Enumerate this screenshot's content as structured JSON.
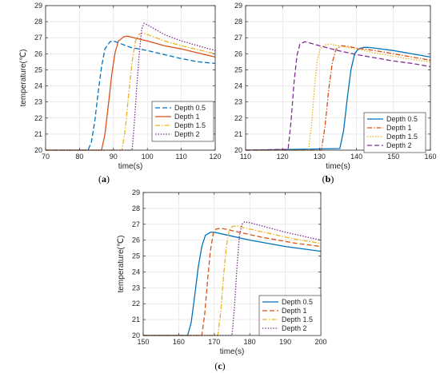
{
  "chart_data": [
    {
      "type": "line",
      "panel_label": "(a)",
      "xlabel": "time(s)",
      "ylabel": "temperature(℃)",
      "xlim": [
        70,
        120
      ],
      "ylim": [
        20,
        29
      ],
      "xticks": [
        70,
        80,
        90,
        100,
        110,
        120
      ],
      "yticks": [
        20,
        21,
        22,
        23,
        24,
        25,
        26,
        27,
        28,
        29
      ],
      "legend_position": "bottom-right",
      "series": [
        {
          "name": "Depth 0.5",
          "color": "#0072BD",
          "style": "dashed",
          "x": [
            70,
            82.5,
            83.5,
            84.5,
            85.5,
            86.5,
            87.5,
            89,
            90,
            95,
            100,
            105,
            110,
            115,
            120
          ],
          "y": [
            20,
            20,
            20.5,
            21.8,
            23.6,
            25.2,
            26.3,
            26.75,
            26.8,
            26.4,
            26.2,
            25.95,
            25.7,
            25.5,
            25.4
          ]
        },
        {
          "name": "Depth 1",
          "color": "#D95319",
          "style": "solid",
          "x": [
            70,
            86.5,
            87.5,
            88.5,
            89.5,
            90.5,
            91.5,
            93,
            94,
            100,
            105,
            110,
            115,
            120
          ],
          "y": [
            20,
            20,
            21,
            22.8,
            24.7,
            26.1,
            26.8,
            27.05,
            27.1,
            26.8,
            26.5,
            26.3,
            26.05,
            25.8
          ]
        },
        {
          "name": "Depth 1.5",
          "color": "#EDB120",
          "style": "dashdot",
          "x": [
            70,
            92.5,
            93.5,
            94.5,
            95.5,
            96.5,
            97.5,
            98.5,
            100,
            105,
            110,
            115,
            120
          ],
          "y": [
            20,
            20,
            21.3,
            23.5,
            25.5,
            26.8,
            27.2,
            27.3,
            27.2,
            26.8,
            26.5,
            26.25,
            26.0
          ]
        },
        {
          "name": "Depth 2",
          "color": "#7E2F8E",
          "style": "dotted",
          "x": [
            70,
            95.5,
            96.2,
            96.9,
            97.6,
            98.3,
            99,
            100,
            105,
            110,
            115,
            120
          ],
          "y": [
            20,
            20,
            21.8,
            24,
            26,
            27.5,
            27.9,
            27.8,
            27.2,
            26.8,
            26.5,
            26.2
          ]
        }
      ]
    },
    {
      "type": "line",
      "panel_label": "(b)",
      "xlabel": "time(s)",
      "ylabel": "",
      "xlim": [
        110,
        160
      ],
      "ylim": [
        20,
        29
      ],
      "xticks": [
        110,
        120,
        130,
        140,
        150,
        160
      ],
      "yticks": [
        20,
        21,
        22,
        23,
        24,
        25,
        26,
        27,
        28,
        29
      ],
      "legend_position": "bottom-right",
      "series": [
        {
          "name": "Depth 0.5",
          "color": "#0072BD",
          "style": "solid",
          "x": [
            110,
            135.5,
            136.5,
            137.5,
            138.5,
            139.5,
            140.5,
            142,
            143,
            145,
            150,
            155,
            160
          ],
          "y": [
            20,
            20.1,
            21.2,
            23.2,
            25.0,
            26.0,
            26.3,
            26.4,
            26.4,
            26.35,
            26.2,
            26.0,
            25.8
          ]
        },
        {
          "name": "Depth 1",
          "color": "#D95319",
          "style": "dashdot",
          "x": [
            110,
            130.5,
            131.5,
            132.5,
            133.5,
            134.5,
            136,
            138,
            140,
            145,
            150,
            155,
            160
          ],
          "y": [
            20,
            20,
            21.5,
            23.8,
            25.5,
            26.3,
            26.5,
            26.45,
            26.35,
            26.2,
            26.0,
            25.8,
            25.6
          ]
        },
        {
          "name": "Depth 1.5",
          "color": "#EDB120",
          "style": "dotted",
          "x": [
            110,
            127,
            127.8,
            128.6,
            129.4,
            130.2,
            131.5,
            133,
            135,
            140,
            145,
            150,
            155,
            160
          ],
          "y": [
            20,
            20,
            21.5,
            23.8,
            25.6,
            26.35,
            26.55,
            26.6,
            26.5,
            26.3,
            26.05,
            25.85,
            25.65,
            25.5
          ]
        },
        {
          "name": "Depth 2",
          "color": "#7E2F8E",
          "style": "dashed",
          "x": [
            110,
            121.5,
            122.3,
            123.1,
            123.9,
            124.7,
            126,
            127,
            130,
            135,
            140,
            145,
            150,
            155,
            160
          ],
          "y": [
            20,
            20.05,
            21.8,
            24.2,
            25.9,
            26.6,
            26.75,
            26.7,
            26.5,
            26.2,
            25.95,
            25.75,
            25.55,
            25.4,
            25.2
          ]
        }
      ]
    },
    {
      "type": "line",
      "panel_label": "(c)",
      "xlabel": "time(s)",
      "ylabel": "temperature(℃)",
      "xlim": [
        150,
        200
      ],
      "ylim": [
        20,
        29
      ],
      "xticks": [
        150,
        160,
        170,
        180,
        190,
        200
      ],
      "yticks": [
        20,
        21,
        22,
        23,
        24,
        25,
        26,
        27,
        28,
        29
      ],
      "legend_position": "bottom-right",
      "series": [
        {
          "name": "Depth 0.5",
          "color": "#0072BD",
          "style": "solid",
          "x": [
            150,
            162.5,
            163.5,
            164.5,
            165.5,
            166.5,
            167.5,
            169,
            170,
            175,
            180,
            185,
            190,
            195,
            200
          ],
          "y": [
            20,
            20,
            20.8,
            22.5,
            24.3,
            25.6,
            26.3,
            26.5,
            26.5,
            26.25,
            26.0,
            25.8,
            25.6,
            25.45,
            25.3
          ]
        },
        {
          "name": "Depth 1",
          "color": "#D95319",
          "style": "dashed",
          "x": [
            150,
            166.5,
            167.3,
            168.1,
            168.9,
            169.7,
            170.5,
            172,
            173,
            178,
            183,
            188,
            193,
            200
          ],
          "y": [
            20,
            20,
            21.3,
            23.4,
            25.3,
            26.4,
            26.7,
            26.75,
            26.7,
            26.45,
            26.2,
            26.0,
            25.8,
            25.6
          ]
        },
        {
          "name": "Depth 1.5",
          "color": "#EDB120",
          "style": "dashdot",
          "x": [
            150,
            171,
            171.8,
            172.6,
            173.4,
            174.2,
            175,
            176.5,
            178,
            183,
            188,
            193,
            200
          ],
          "y": [
            20,
            20,
            21.4,
            23.7,
            25.6,
            26.6,
            26.85,
            26.9,
            26.8,
            26.55,
            26.3,
            26.05,
            25.8
          ]
        },
        {
          "name": "Depth 2",
          "color": "#7E2F8E",
          "style": "dotted",
          "x": [
            150,
            175,
            175.7,
            176.4,
            177.1,
            177.8,
            178.5,
            180,
            185,
            190,
            195,
            200
          ],
          "y": [
            20,
            20,
            21.8,
            24.3,
            26.3,
            27.0,
            27.15,
            27.1,
            26.8,
            26.5,
            26.25,
            26.0
          ]
        }
      ]
    }
  ]
}
